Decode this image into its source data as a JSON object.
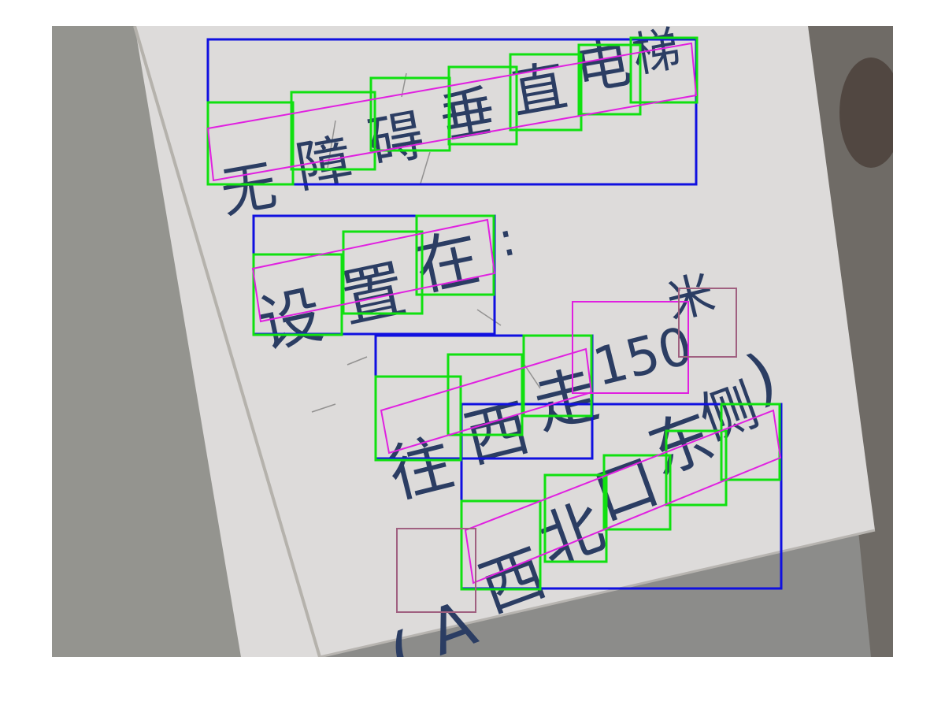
{
  "figure": {
    "alt_summary": "Photo of a white sign with Chinese text and detection bounding boxes"
  },
  "sign": {
    "line1": [
      "无",
      "障",
      "碍",
      "垂",
      "直",
      "电",
      "梯"
    ],
    "line2": [
      "设",
      "置",
      "在",
      ":"
    ],
    "line3": [
      "往",
      "西",
      "走",
      "150",
      "米"
    ],
    "line4": [
      "(",
      "A",
      "西",
      "北",
      "口",
      "东",
      "侧",
      ")"
    ]
  },
  "colors": {
    "line_box": "#1010e0",
    "char_box": "#10e010",
    "word_box": "#e020e0",
    "ignore_box": "#a06080",
    "text": "#2b3d63",
    "sign_face": "#dcdada",
    "background": "#8d8d8b"
  }
}
